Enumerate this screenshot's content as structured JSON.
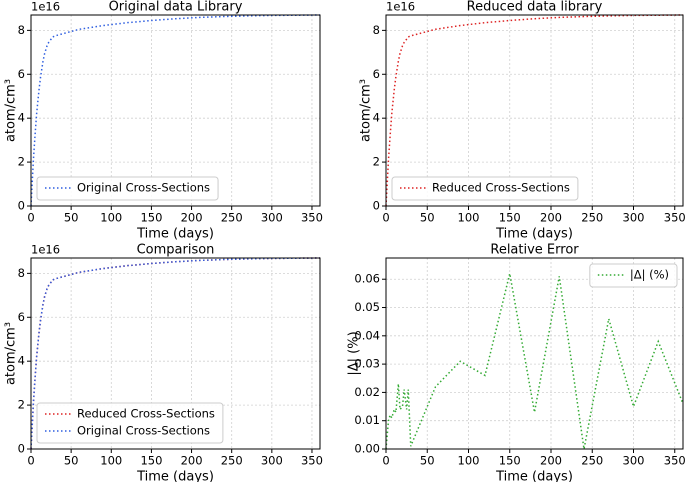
{
  "chart_data": [
    {
      "type": "line",
      "title": "Original data Library",
      "xlabel": "Time (days)",
      "ylabel": "atom/cm³",
      "y_offset_label": "1e16",
      "x": [
        0,
        3,
        5,
        7,
        10,
        12,
        15,
        17,
        20,
        22,
        25,
        27,
        30,
        60,
        90,
        120,
        150,
        180,
        210,
        240,
        270,
        300,
        330,
        360
      ],
      "series": [
        {
          "name": "Original Cross-Sections",
          "color": "#2f5fe0",
          "values": [
            0,
            2.1,
            3.2,
            4.2,
            5.3,
            5.9,
            6.6,
            6.95,
            7.3,
            7.45,
            7.6,
            7.7,
            7.75,
            8.05,
            8.22,
            8.35,
            8.45,
            8.53,
            8.59,
            8.63,
            8.66,
            8.68,
            8.69,
            8.7
          ]
        }
      ],
      "xlim": [
        0,
        360
      ],
      "ylim": [
        0,
        8.7
      ],
      "xticks": [
        0,
        50,
        100,
        150,
        200,
        250,
        300,
        350
      ],
      "yticks": [
        0,
        2,
        4,
        6,
        8
      ],
      "grid": true,
      "legend_loc": "lower-left"
    },
    {
      "type": "line",
      "title": "Reduced data library",
      "xlabel": "Time (days)",
      "ylabel": "atom/cm³",
      "y_offset_label": "1e16",
      "x": [
        0,
        3,
        5,
        7,
        10,
        12,
        15,
        17,
        20,
        22,
        25,
        27,
        30,
        60,
        90,
        120,
        150,
        180,
        210,
        240,
        270,
        300,
        330,
        360
      ],
      "series": [
        {
          "name": "Reduced Cross-Sections",
          "color": "#dd2222",
          "values": [
            0,
            2.1,
            3.2,
            4.2,
            5.3,
            5.9,
            6.6,
            6.95,
            7.3,
            7.45,
            7.6,
            7.7,
            7.75,
            8.05,
            8.22,
            8.35,
            8.45,
            8.53,
            8.59,
            8.63,
            8.66,
            8.68,
            8.69,
            8.7
          ]
        }
      ],
      "xlim": [
        0,
        360
      ],
      "ylim": [
        0,
        8.7
      ],
      "xticks": [
        0,
        50,
        100,
        150,
        200,
        250,
        300,
        350
      ],
      "yticks": [
        0,
        2,
        4,
        6,
        8
      ],
      "grid": true,
      "legend_loc": "lower-left"
    },
    {
      "type": "line",
      "title": "Comparison",
      "xlabel": "Time (days)",
      "ylabel": "atom/cm³",
      "y_offset_label": "1e16",
      "x": [
        0,
        3,
        5,
        7,
        10,
        12,
        15,
        17,
        20,
        22,
        25,
        27,
        30,
        60,
        90,
        120,
        150,
        180,
        210,
        240,
        270,
        300,
        330,
        360
      ],
      "series": [
        {
          "name": "Reduced Cross-Sections",
          "color": "#dd2222",
          "values": [
            0,
            2.1,
            3.2,
            4.2,
            5.3,
            5.9,
            6.6,
            6.95,
            7.3,
            7.45,
            7.6,
            7.7,
            7.75,
            8.05,
            8.22,
            8.35,
            8.45,
            8.53,
            8.59,
            8.63,
            8.66,
            8.68,
            8.69,
            8.7
          ]
        },
        {
          "name": "Original Cross-Sections",
          "color": "#2f5fe0",
          "values": [
            0,
            2.1,
            3.2,
            4.2,
            5.3,
            5.9,
            6.6,
            6.95,
            7.3,
            7.45,
            7.6,
            7.7,
            7.75,
            8.05,
            8.22,
            8.35,
            8.45,
            8.53,
            8.59,
            8.63,
            8.66,
            8.68,
            8.69,
            8.7
          ]
        }
      ],
      "xlim": [
        0,
        360
      ],
      "ylim": [
        0,
        8.7
      ],
      "xticks": [
        0,
        50,
        100,
        150,
        200,
        250,
        300,
        350
      ],
      "yticks": [
        0,
        2,
        4,
        6,
        8
      ],
      "grid": true,
      "legend_loc": "lower-left"
    },
    {
      "type": "line",
      "title": "Relative Error",
      "xlabel": "Time (days)",
      "ylabel": "|Δ| (%)",
      "x": [
        0,
        3,
        5,
        7,
        10,
        12,
        15,
        17,
        20,
        22,
        25,
        27,
        30,
        60,
        90,
        120,
        150,
        180,
        210,
        240,
        270,
        300,
        330,
        360
      ],
      "series": [
        {
          "name": "|Δ| (%)",
          "color": "#33aa33",
          "values": [
            0,
            0.01,
            0.012,
            0.011,
            0.014,
            0.013,
            0.023,
            0.014,
            0.015,
            0.021,
            0.014,
            0.021,
            0.001,
            0.022,
            0.031,
            0.026,
            0.062,
            0.013,
            0.061,
            0.0,
            0.046,
            0.015,
            0.038,
            0.016
          ]
        }
      ],
      "xlim": [
        0,
        360
      ],
      "ylim": [
        0,
        0.0675
      ],
      "xticks": [
        0,
        50,
        100,
        150,
        200,
        250,
        300,
        350
      ],
      "yticks": [
        {
          "value": 0,
          "label": "0.00"
        },
        {
          "value": 0.01,
          "label": "0.01"
        },
        {
          "value": 0.02,
          "label": "0.02"
        },
        {
          "value": 0.03,
          "label": "0.03"
        },
        {
          "value": 0.04,
          "label": "0.04"
        },
        {
          "value": 0.05,
          "label": "0.05"
        },
        {
          "value": 0.06,
          "label": "0.06"
        }
      ],
      "grid": true,
      "legend_loc": "upper-right"
    }
  ]
}
